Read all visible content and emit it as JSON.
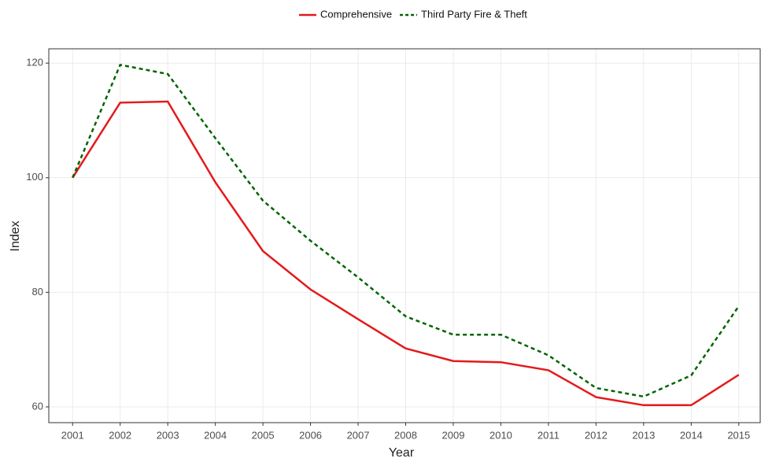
{
  "chart_data": {
    "type": "line",
    "x_label": "Year",
    "y_label": "Index",
    "x": [
      2001,
      2002,
      2003,
      2004,
      2005,
      2006,
      2007,
      2008,
      2009,
      2010,
      2011,
      2012,
      2013,
      2014,
      2015
    ],
    "series": [
      {
        "name": "Comprehensive",
        "color": "#e41a1c",
        "linestyle": "solid",
        "values": [
          100,
          113.1,
          113.3,
          99.2,
          87.2,
          80.5,
          75.3,
          70.2,
          68.0,
          67.8,
          66.4,
          61.7,
          60.3,
          60.3,
          65.6
        ]
      },
      {
        "name": "Third Party Fire & Theft",
        "color": "#006400",
        "linestyle": "dashed",
        "values": [
          100,
          119.7,
          118.1,
          106.9,
          96.0,
          89.0,
          82.6,
          75.8,
          72.6,
          72.6,
          69.0,
          63.3,
          61.8,
          65.5,
          77.6
        ]
      }
    ],
    "xlim": [
      2000.5,
      2015.45
    ],
    "xticks": [
      2001,
      2002,
      2003,
      2004,
      2005,
      2006,
      2007,
      2008,
      2009,
      2010,
      2011,
      2012,
      2013,
      2014,
      2015
    ],
    "ylim": [
      57.25,
      122.5
    ],
    "yticks": [
      60,
      80,
      100,
      120
    ],
    "grid": true,
    "legend": "top"
  }
}
